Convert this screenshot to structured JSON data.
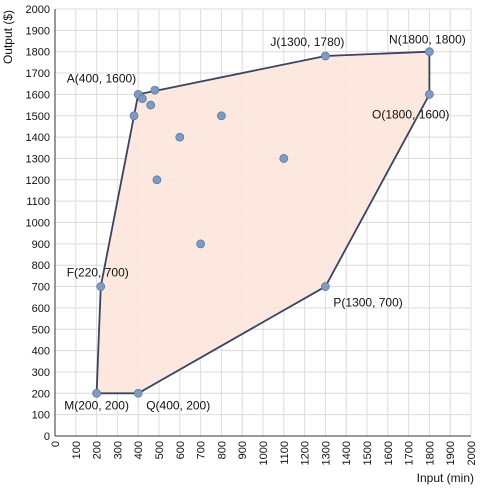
{
  "chart_data": {
    "type": "scatter",
    "xlabel": "Input (min)",
    "ylabel": "Output ($)",
    "xlim": [
      0,
      2000
    ],
    "ylim": [
      0,
      2000
    ],
    "xticks": [
      0,
      100,
      200,
      300,
      400,
      500,
      600,
      700,
      800,
      900,
      1000,
      1100,
      1200,
      1300,
      1400,
      1500,
      1600,
      1700,
      1800,
      1900,
      2000
    ],
    "yticks": [
      0,
      100,
      200,
      300,
      400,
      500,
      600,
      700,
      800,
      900,
      1000,
      1100,
      1200,
      1300,
      1400,
      1500,
      1600,
      1700,
      1800,
      1900,
      2000
    ],
    "grid": true,
    "colors": {
      "point": "#7f9bbf",
      "point_stroke": "#5d7ba3",
      "hull_fill": "#fde5db",
      "hull_stroke": "#3a4360",
      "grid": "#dcdcdc"
    },
    "hull": [
      {
        "x": 200,
        "y": 200
      },
      {
        "x": 220,
        "y": 700
      },
      {
        "x": 400,
        "y": 1600
      },
      {
        "x": 1300,
        "y": 1780
      },
      {
        "x": 1800,
        "y": 1800
      },
      {
        "x": 1800,
        "y": 1600
      },
      {
        "x": 1300,
        "y": 700
      },
      {
        "x": 400,
        "y": 200
      }
    ],
    "points": [
      {
        "x": 400,
        "y": 1600,
        "label": "A(400, 1600)",
        "anchor": "end",
        "dx": -2,
        "dy": -12
      },
      {
        "x": 220,
        "y": 700,
        "label": "F(220, 700)",
        "anchor": "end",
        "dx": 28,
        "dy": -10
      },
      {
        "x": 1300,
        "y": 1780,
        "label": "J(1300, 1780)",
        "anchor": "middle",
        "dx": -18,
        "dy": -10
      },
      {
        "x": 1800,
        "y": 1800,
        "label": "N(1800, 1800)",
        "anchor": "middle",
        "dx": -2,
        "dy": -8
      },
      {
        "x": 200,
        "y": 200,
        "label": "M(200, 200)",
        "anchor": "middle",
        "dx": 0,
        "dy": 16
      },
      {
        "x": 400,
        "y": 200,
        "label": "Q(400, 200)",
        "anchor": "start",
        "dx": 8,
        "dy": 16
      },
      {
        "x": 1300,
        "y": 700,
        "label": "P(1300, 700)",
        "anchor": "start",
        "dx": 8,
        "dy": 20
      },
      {
        "x": 1800,
        "y": 1600,
        "label": "O(1800, 1600)",
        "anchor": "end",
        "dx": 20,
        "dy": 24
      },
      {
        "x": 420,
        "y": 1580,
        "label": ""
      },
      {
        "x": 480,
        "y": 1620,
        "label": ""
      },
      {
        "x": 460,
        "y": 1550,
        "label": ""
      },
      {
        "x": 380,
        "y": 1500,
        "label": ""
      },
      {
        "x": 600,
        "y": 1400,
        "label": ""
      },
      {
        "x": 800,
        "y": 1500,
        "label": ""
      },
      {
        "x": 1100,
        "y": 1300,
        "label": ""
      },
      {
        "x": 490,
        "y": 1200,
        "label": ""
      },
      {
        "x": 700,
        "y": 900,
        "label": ""
      }
    ]
  }
}
